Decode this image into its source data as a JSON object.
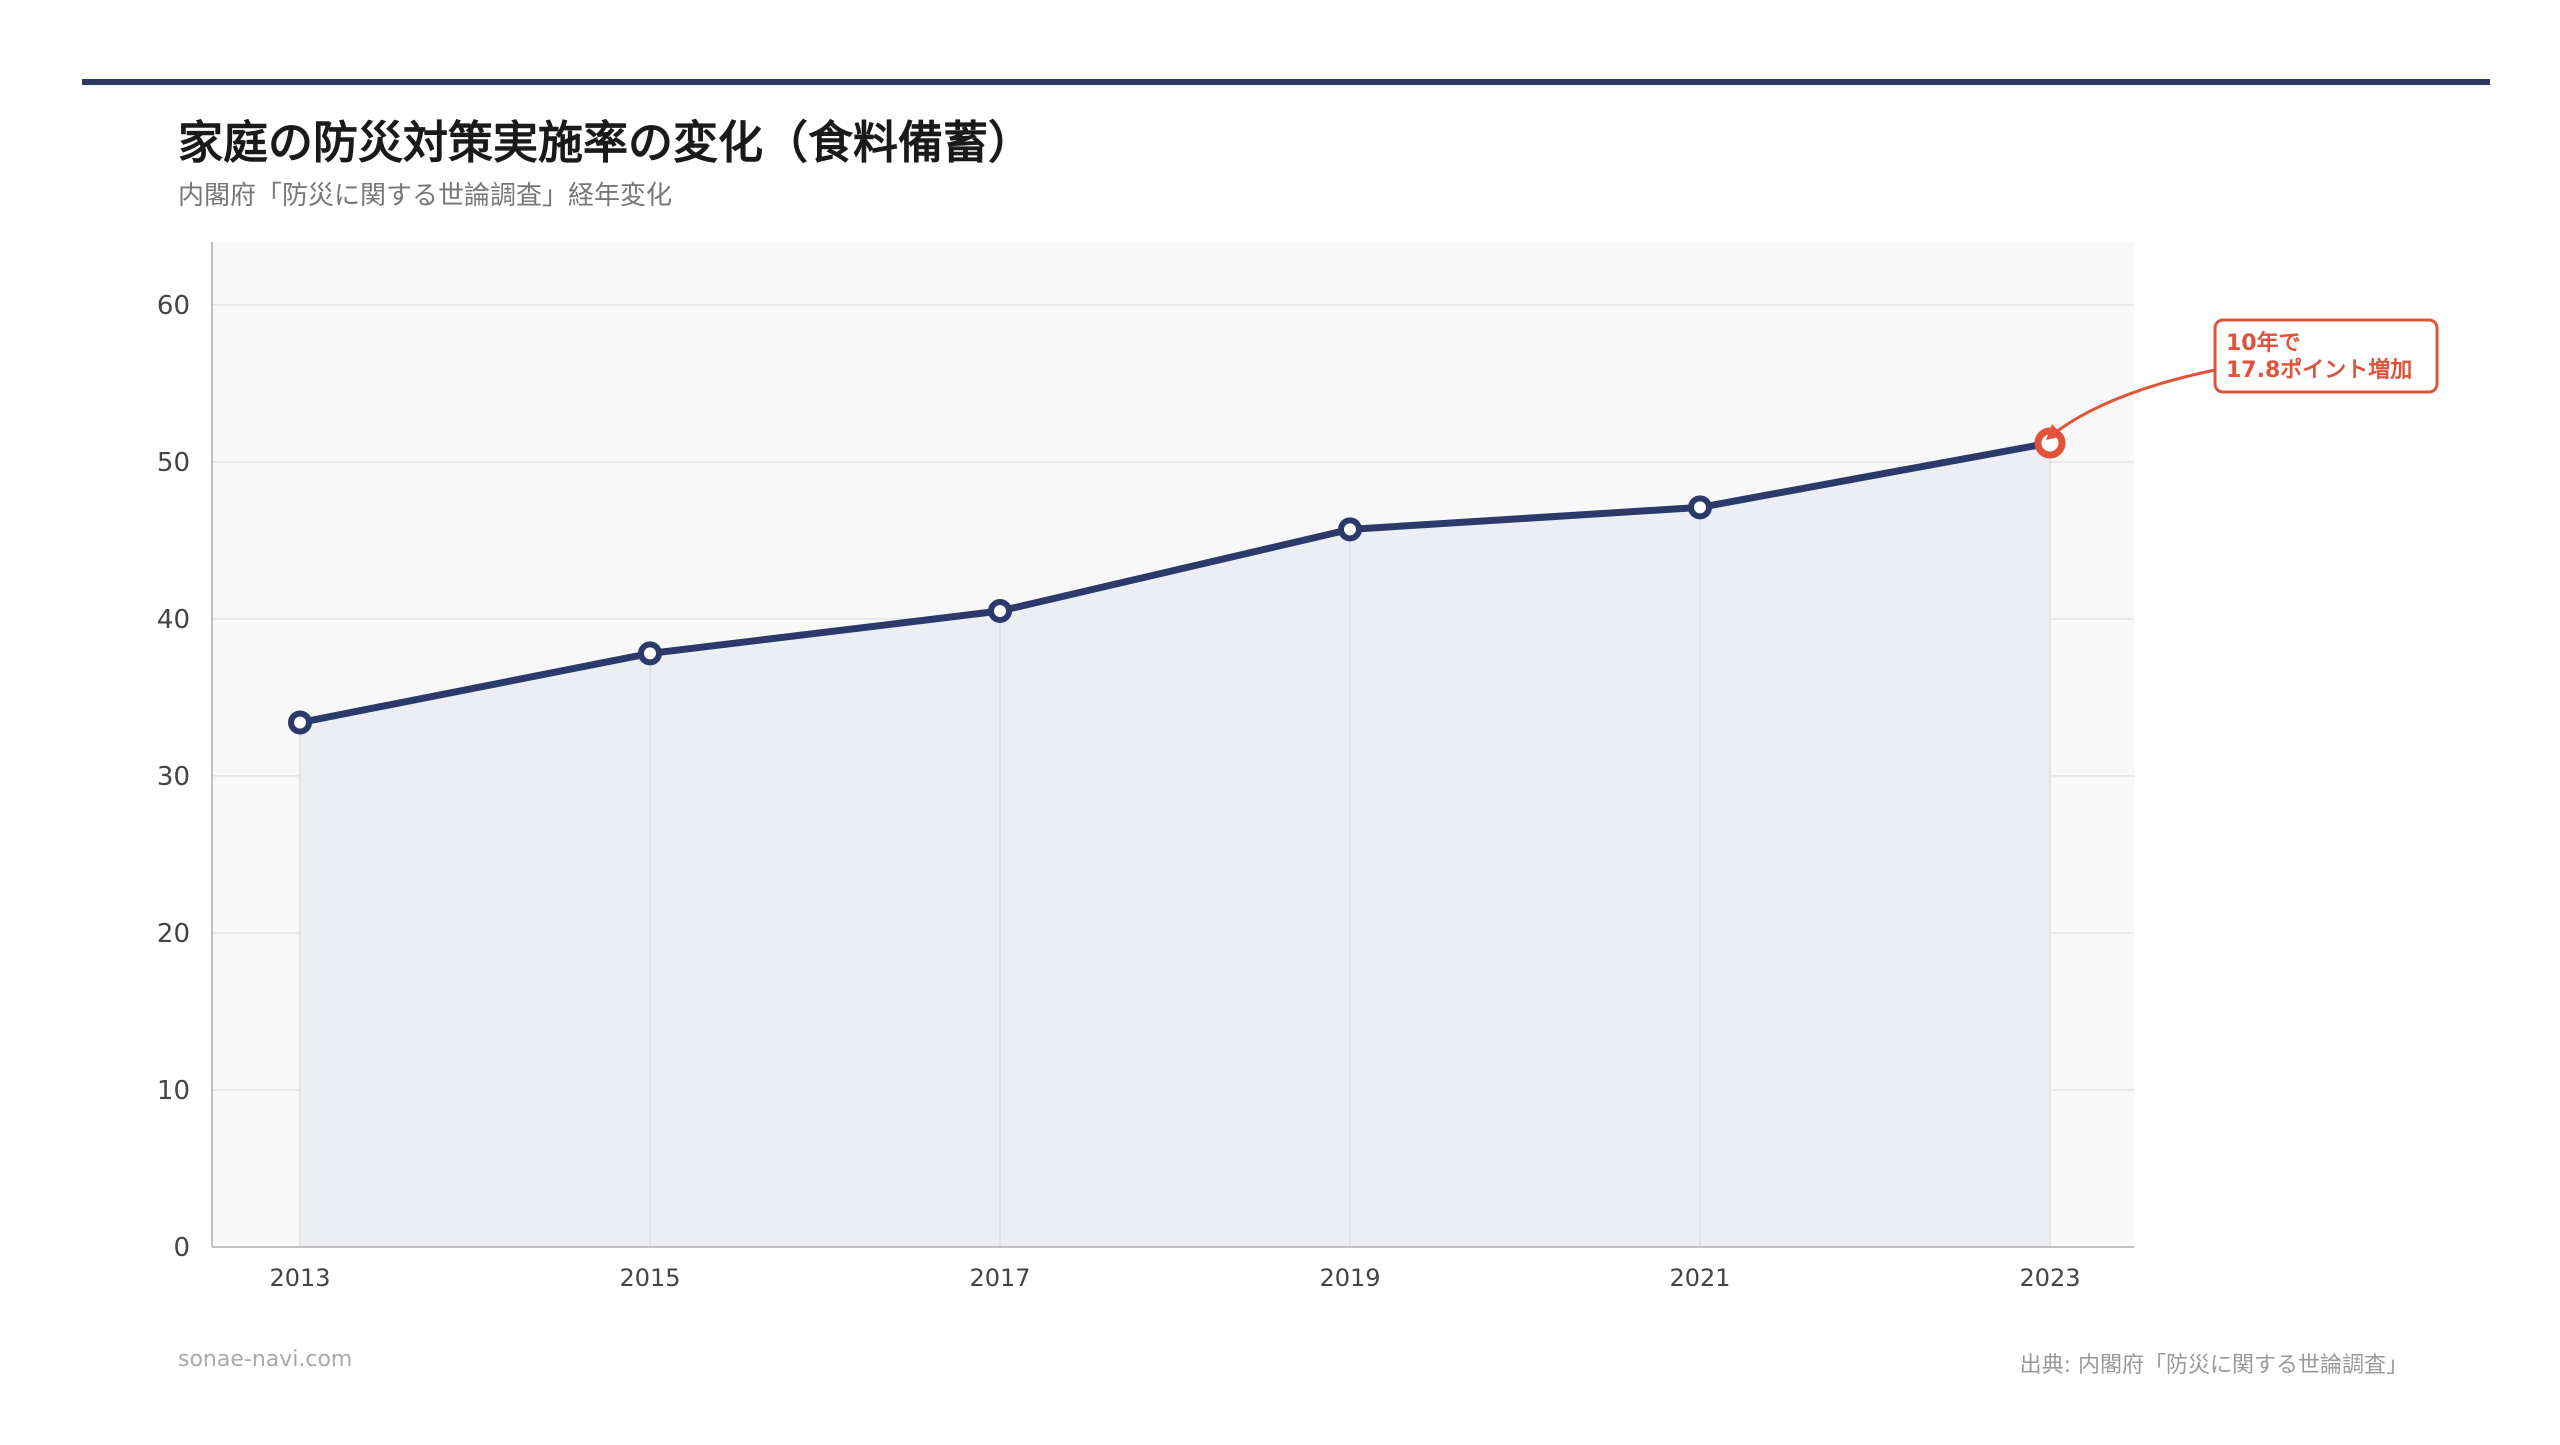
{
  "header": {
    "title": "家庭の防災対策実施率の変化（食料備蓄）",
    "subtitle": "内閣府「防災に関する世論調査」経年変化"
  },
  "footer": {
    "site": "sonae-navi.com",
    "source": "出典: 内閣府「防災に関する世論調査」"
  },
  "colors": {
    "line": "#2b3a6b",
    "accent": "#e0533a",
    "plot_bg": "#f8f8f8",
    "area_fill": "#eceef3",
    "grid": "#e4e4e4"
  },
  "chart_data": {
    "type": "area",
    "categories": [
      "2013",
      "2015",
      "2017",
      "2019",
      "2021",
      "2023"
    ],
    "series": [
      {
        "values": [
          33.4,
          37.8,
          40.5,
          45.7,
          47.1,
          51.2
        ]
      }
    ],
    "yticks": [
      0,
      10,
      20,
      30,
      40,
      50,
      60
    ],
    "ylim": [
      0,
      64
    ],
    "grid": true,
    "highlight_index": 5,
    "annotation": {
      "lines": [
        "10年で",
        "17.8ポイント増加"
      ]
    }
  }
}
